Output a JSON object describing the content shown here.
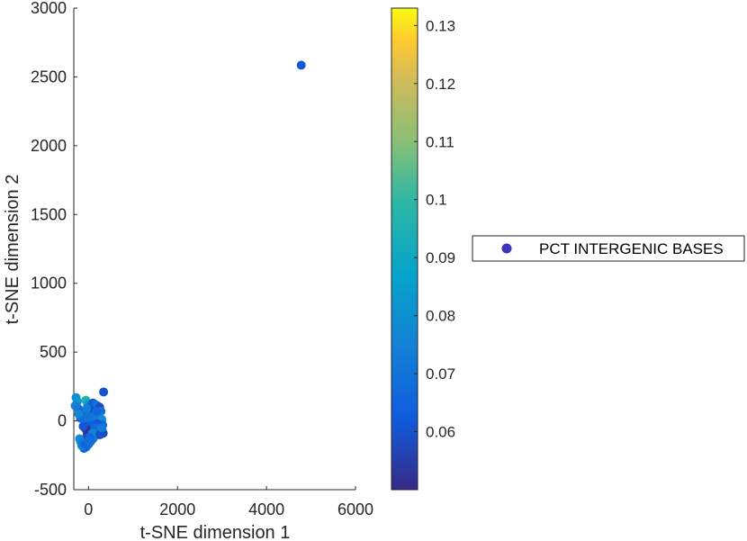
{
  "chart_data": {
    "type": "scatter",
    "xlabel": "t-SNE dimension 1",
    "ylabel": "t-SNE dimension 2",
    "xlim": [
      -330,
      6000
    ],
    "ylim": [
      -500,
      3000
    ],
    "xticks": [
      0,
      2000,
      4000,
      6000
    ],
    "yticks": [
      -500,
      0,
      500,
      1000,
      1500,
      2000,
      2500,
      3000
    ],
    "grid": false,
    "legend": {
      "placement": "right",
      "entries": [
        "PCT INTERGENIC BASES"
      ]
    },
    "colorbar": {
      "colormap": "parula",
      "range": [
        0.05,
        0.133
      ],
      "ticks": [
        0.06,
        0.07,
        0.08,
        0.09,
        0.1,
        0.11,
        0.12,
        0.13
      ],
      "tick_labels": [
        "0.06",
        "0.07",
        "0.08",
        "0.09",
        "0.1",
        "0.11",
        "0.12",
        "0.13"
      ]
    },
    "series": [
      {
        "points": [
          {
            "x": 4780,
            "y": 2585,
            "c": 0.062
          },
          {
            "x": 340,
            "y": 210,
            "c": 0.06
          },
          {
            "x": -280,
            "y": 170,
            "c": 0.08
          },
          {
            "x": -250,
            "y": 140,
            "c": 0.082
          },
          {
            "x": -60,
            "y": 150,
            "c": 0.096
          },
          {
            "x": -20,
            "y": 120,
            "c": 0.083
          },
          {
            "x": -300,
            "y": 110,
            "c": 0.075
          },
          {
            "x": -230,
            "y": 90,
            "c": 0.072
          },
          {
            "x": -150,
            "y": 70,
            "c": 0.066
          },
          {
            "x": -100,
            "y": 40,
            "c": 0.073
          },
          {
            "x": -50,
            "y": 10,
            "c": 0.078
          },
          {
            "x": 0,
            "y": -20,
            "c": 0.065
          },
          {
            "x": 50,
            "y": 110,
            "c": 0.07
          },
          {
            "x": 100,
            "y": 130,
            "c": 0.062
          },
          {
            "x": 150,
            "y": 120,
            "c": 0.067
          },
          {
            "x": 200,
            "y": 110,
            "c": 0.071
          },
          {
            "x": 250,
            "y": 100,
            "c": 0.058
          },
          {
            "x": 280,
            "y": 70,
            "c": 0.069
          },
          {
            "x": 230,
            "y": 40,
            "c": 0.074
          },
          {
            "x": 170,
            "y": 20,
            "c": 0.061
          },
          {
            "x": 120,
            "y": -10,
            "c": 0.068
          },
          {
            "x": 60,
            "y": -40,
            "c": 0.063
          },
          {
            "x": 300,
            "y": 10,
            "c": 0.079
          },
          {
            "x": 320,
            "y": -30,
            "c": 0.066
          },
          {
            "x": 310,
            "y": -70,
            "c": 0.072
          },
          {
            "x": 330,
            "y": -90,
            "c": 0.059
          },
          {
            "x": 250,
            "y": -60,
            "c": 0.064
          },
          {
            "x": 200,
            "y": -80,
            "c": 0.07
          },
          {
            "x": 150,
            "y": -110,
            "c": 0.067
          },
          {
            "x": 100,
            "y": -130,
            "c": 0.074
          },
          {
            "x": 50,
            "y": -150,
            "c": 0.069
          },
          {
            "x": 0,
            "y": -170,
            "c": 0.063
          },
          {
            "x": -50,
            "y": -190,
            "c": 0.071
          },
          {
            "x": -100,
            "y": -200,
            "c": 0.066
          },
          {
            "x": -150,
            "y": -180,
            "c": 0.075
          },
          {
            "x": -180,
            "y": -150,
            "c": 0.08
          },
          {
            "x": -80,
            "y": -140,
            "c": 0.062
          },
          {
            "x": -30,
            "y": -100,
            "c": 0.058
          },
          {
            "x": 20,
            "y": -70,
            "c": 0.055
          },
          {
            "x": -60,
            "y": -60,
            "c": 0.052
          },
          {
            "x": -120,
            "y": -40,
            "c": 0.061
          },
          {
            "x": -180,
            "y": 20,
            "c": 0.068
          },
          {
            "x": -220,
            "y": 50,
            "c": 0.077
          },
          {
            "x": -20,
            "y": 60,
            "c": 0.064
          },
          {
            "x": 40,
            "y": 80,
            "c": 0.06
          },
          {
            "x": 80,
            "y": 60,
            "c": 0.057
          },
          {
            "x": 130,
            "y": 40,
            "c": 0.073
          },
          {
            "x": 180,
            "y": 70,
            "c": 0.065
          },
          {
            "x": 200,
            "y": -20,
            "c": 0.062
          },
          {
            "x": 150,
            "y": -50,
            "c": 0.068
          },
          {
            "x": 90,
            "y": -90,
            "c": 0.076
          },
          {
            "x": 30,
            "y": -120,
            "c": 0.066
          },
          {
            "x": -10,
            "y": 30,
            "c": 0.071
          },
          {
            "x": -40,
            "y": 90,
            "c": 0.074
          },
          {
            "x": 260,
            "y": -100,
            "c": 0.06
          },
          {
            "x": 300,
            "y": -50,
            "c": 0.073
          },
          {
            "x": -200,
            "y": -130,
            "c": 0.078
          },
          {
            "x": -130,
            "y": -160,
            "c": 0.072
          },
          {
            "x": -70,
            "y": -170,
            "c": 0.066
          },
          {
            "x": 10,
            "y": -150,
            "c": 0.069
          }
        ]
      }
    ]
  }
}
